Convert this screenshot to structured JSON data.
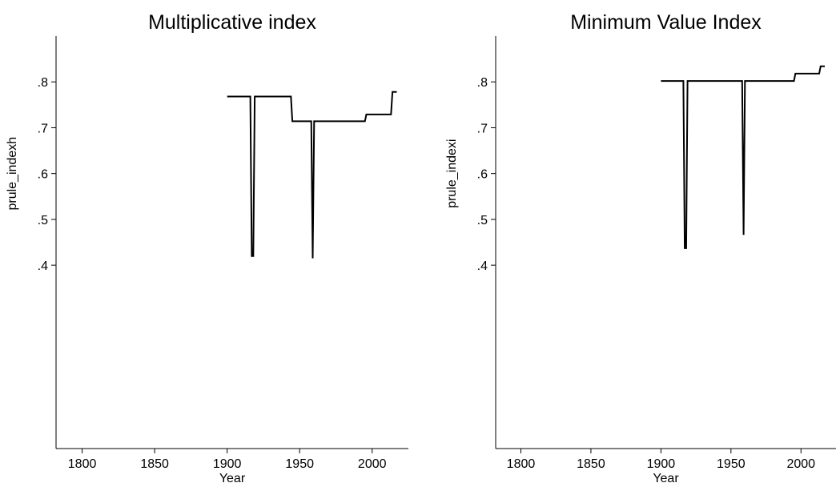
{
  "chart_data": [
    {
      "type": "line",
      "title": "Multiplicative index",
      "xlabel": "Year",
      "ylabel": "prule_indexh",
      "xlim": [
        1782,
        2025
      ],
      "ylim": [
        0.0,
        0.9
      ],
      "x_ticks": [
        1800,
        1850,
        1900,
        1950,
        2000
      ],
      "x_tick_labels": [
        "1800",
        "1850",
        "1900",
        "1950",
        "2000"
      ],
      "y_ticks": [
        0.4,
        0.5,
        0.6,
        0.7,
        0.8
      ],
      "y_tick_labels": [
        ".4",
        ".5",
        ".6",
        ".7",
        ".8"
      ],
      "grid": false,
      "series": [
        {
          "points": [
            [
              1900,
              0.768
            ],
            [
              1916,
              0.768
            ],
            [
              1917,
              0.42
            ],
            [
              1918,
              0.42
            ],
            [
              1919,
              0.768
            ],
            [
              1944,
              0.768
            ],
            [
              1945,
              0.714
            ],
            [
              1958,
              0.714
            ],
            [
              1959,
              0.415
            ],
            [
              1960,
              0.714
            ],
            [
              1995,
              0.714
            ],
            [
              1996,
              0.729
            ],
            [
              2013,
              0.729
            ],
            [
              2014,
              0.778
            ],
            [
              2017,
              0.778
            ]
          ]
        }
      ]
    },
    {
      "type": "line",
      "title": "Minimum Value Index",
      "xlabel": "Year",
      "ylabel": "prule_indexi",
      "xlim": [
        1782,
        2025
      ],
      "ylim": [
        0.0,
        0.9
      ],
      "x_ticks": [
        1800,
        1850,
        1900,
        1950,
        2000
      ],
      "x_tick_labels": [
        "1800",
        "1850",
        "1900",
        "1950",
        "2000"
      ],
      "y_ticks": [
        0.4,
        0.5,
        0.6,
        0.7,
        0.8
      ],
      "y_tick_labels": [
        ".4",
        ".5",
        ".6",
        ".7",
        ".8"
      ],
      "grid": false,
      "series": [
        {
          "points": [
            [
              1900,
              0.802
            ],
            [
              1916,
              0.802
            ],
            [
              1917,
              0.437
            ],
            [
              1918,
              0.437
            ],
            [
              1919,
              0.802
            ],
            [
              1958,
              0.802
            ],
            [
              1959,
              0.466
            ],
            [
              1960,
              0.802
            ],
            [
              1995,
              0.802
            ],
            [
              1996,
              0.818
            ],
            [
              2013,
              0.818
            ],
            [
              2014,
              0.834
            ],
            [
              2017,
              0.834
            ]
          ]
        }
      ]
    }
  ]
}
